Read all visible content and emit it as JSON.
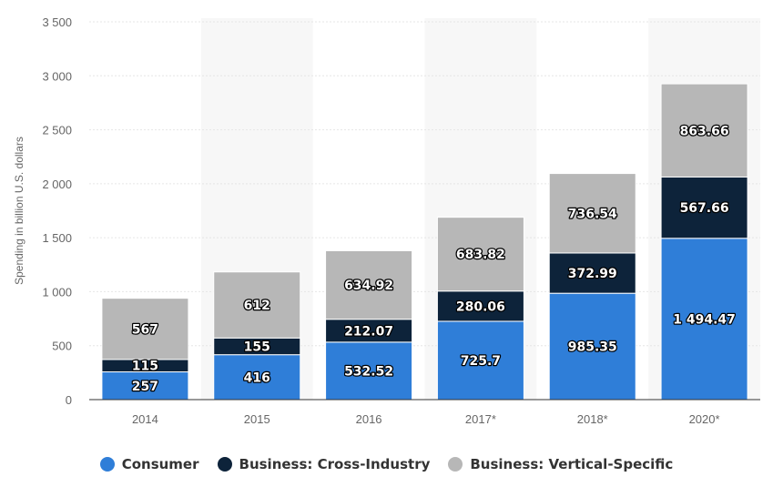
{
  "chart_data": {
    "type": "bar",
    "stacked": true,
    "title": "",
    "xlabel": "",
    "ylabel": "Spending in billion U.S. dollars",
    "ylim": [
      0,
      3500
    ],
    "yticks": [
      0,
      500,
      1000,
      1500,
      2000,
      2500,
      3000,
      3500
    ],
    "ytick_labels": [
      "0",
      "500",
      "1 000",
      "1 500",
      "2 000",
      "2 500",
      "3 000",
      "3 500"
    ],
    "categories": [
      "2014",
      "2015",
      "2016",
      "2017*",
      "2018*",
      "2020*"
    ],
    "grid": true,
    "legend_position": "bottom",
    "series": [
      {
        "name": "Consumer",
        "color": "#2f7ed8",
        "values": [
          257,
          416,
          532.52,
          725.7,
          985.35,
          1494.47
        ],
        "labels": [
          "257",
          "416",
          "532.52",
          "725.7",
          "985.35",
          "1 494.47"
        ]
      },
      {
        "name": "Business: Cross-Industry",
        "color": "#0d233a",
        "values": [
          115,
          155,
          212.07,
          280.06,
          372.99,
          567.66
        ],
        "labels": [
          "115",
          "155",
          "212.07",
          "280.06",
          "372.99",
          "567.66"
        ]
      },
      {
        "name": "Business: Vertical-Specific",
        "color": "#b7b7b7",
        "values": [
          567,
          612,
          634.92,
          683.82,
          736.54,
          863.66
        ],
        "labels": [
          "567",
          "612",
          "634.92",
          "683.82",
          "736.54",
          "863.66"
        ]
      }
    ]
  }
}
